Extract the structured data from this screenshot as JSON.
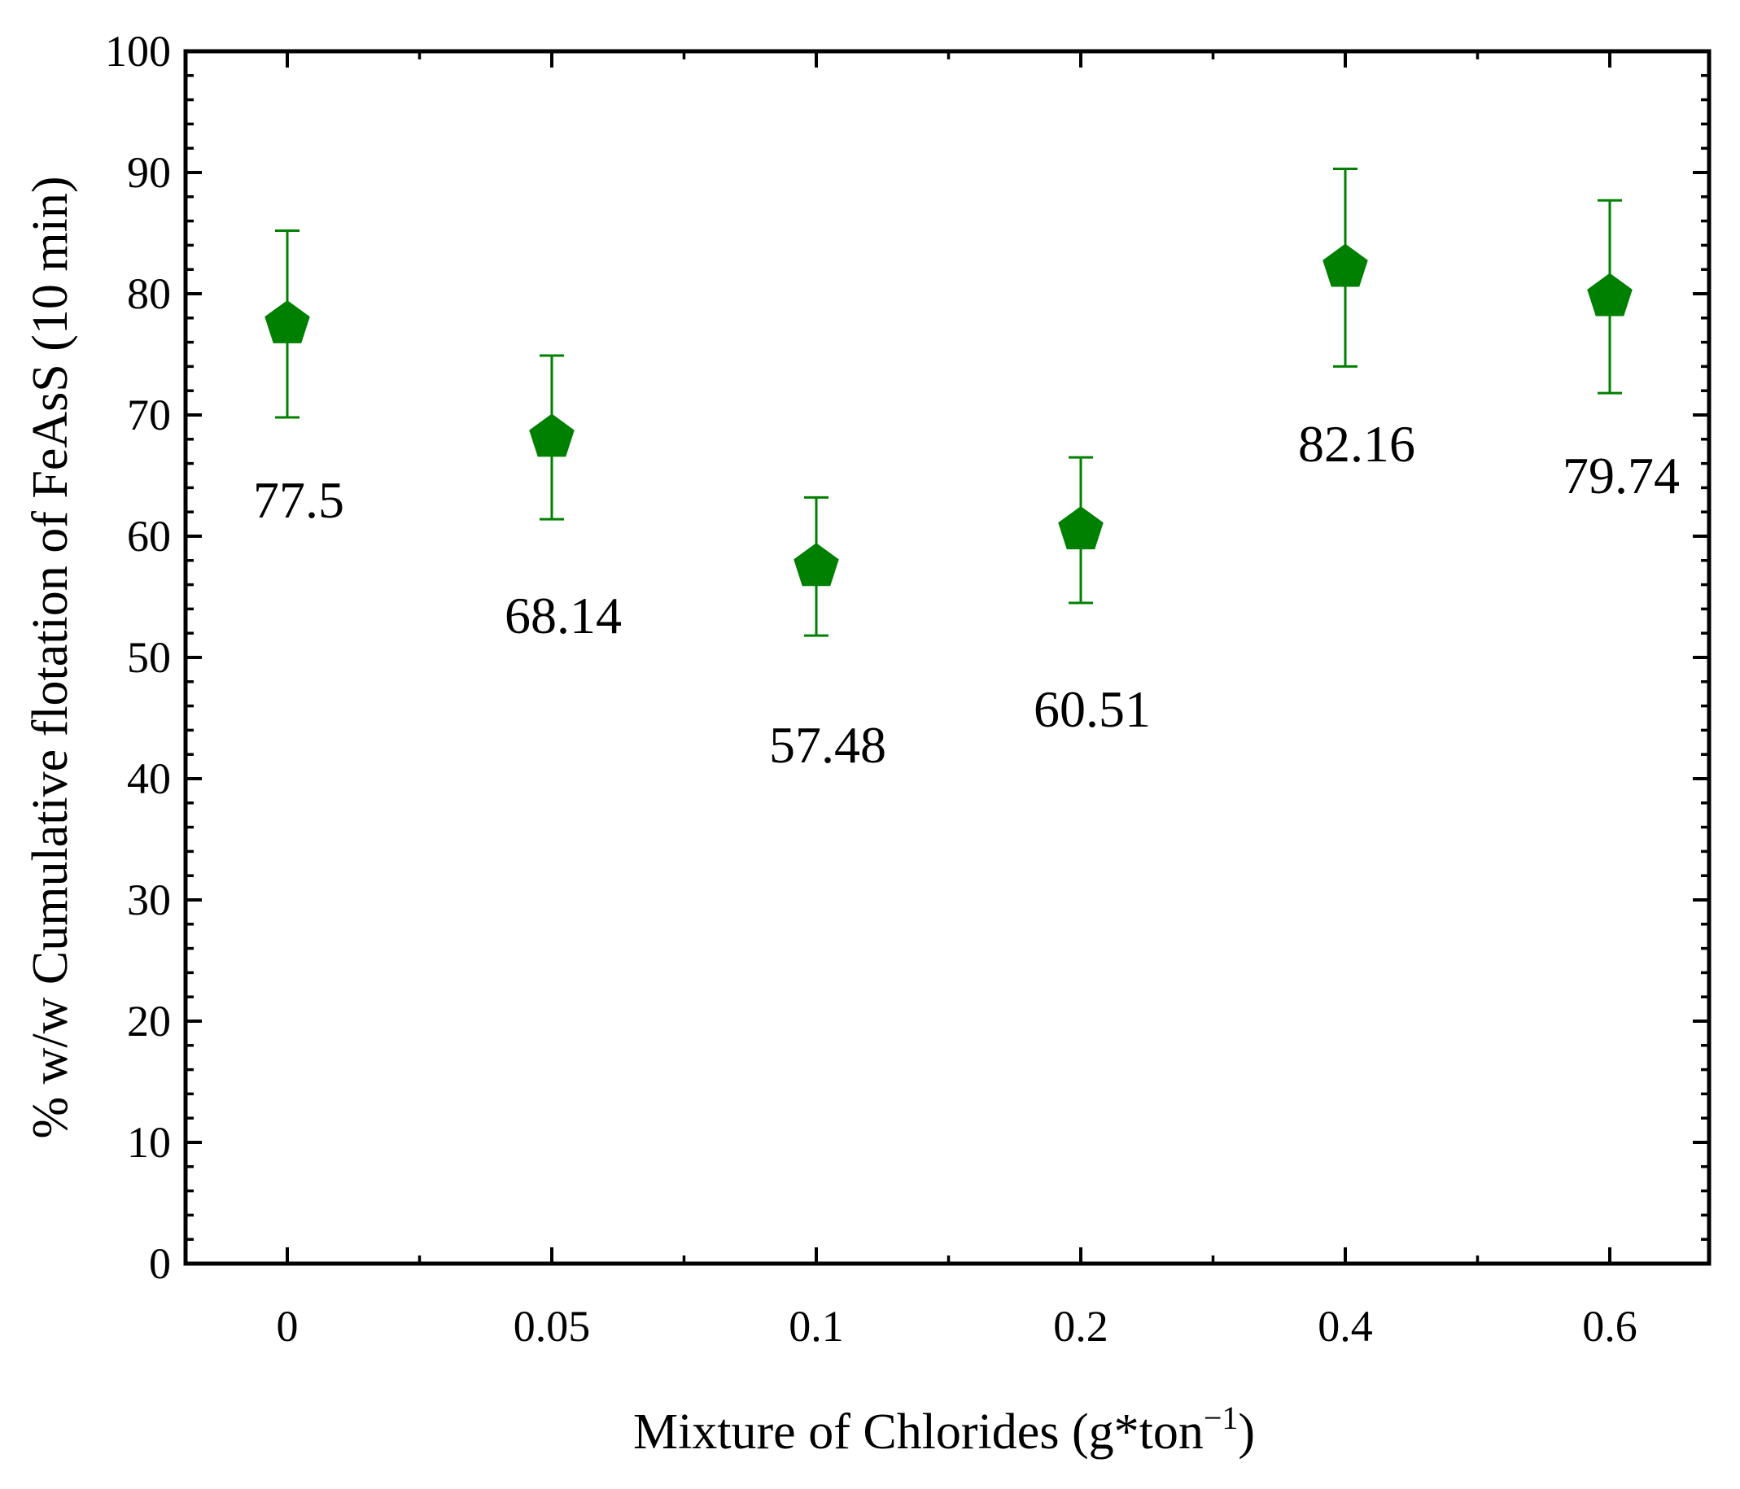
{
  "chart_data": {
    "type": "scatter",
    "title": "",
    "xlabel": "Mixture of Chlorides (g*ton",
    "xlabel_sup": "−1",
    "xlabel_close": ")",
    "ylabel": "% w/w Cumulative flotation of FeAsS (10 min)",
    "categories": [
      "0",
      "0.05",
      "0.1",
      "0.2",
      "0.4",
      "0.6"
    ],
    "values": [
      77.5,
      68.14,
      57.48,
      60.51,
      82.16,
      79.74
    ],
    "error_low": [
      69.8,
      61.4,
      51.8,
      54.5,
      74.0,
      71.8
    ],
    "error_high": [
      85.2,
      74.9,
      63.2,
      66.5,
      90.3,
      87.7
    ],
    "data_labels": [
      "77.5",
      "68.14",
      "57.48",
      "60.51",
      "82.16",
      "79.74"
    ],
    "ylim": [
      0,
      100
    ],
    "yticks": [
      "0",
      "10",
      "20",
      "30",
      "40",
      "50",
      "60",
      "70",
      "80",
      "90",
      "100"
    ],
    "marker": "pentagon",
    "color": "#008000",
    "grid": false,
    "legend": "none"
  }
}
